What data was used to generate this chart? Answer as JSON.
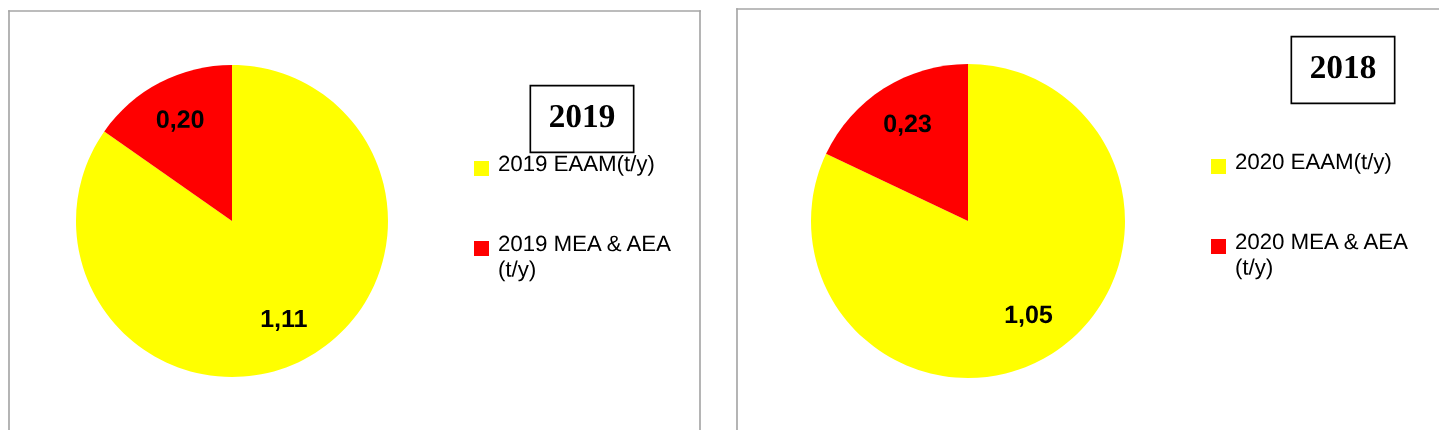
{
  "chart_data": [
    {
      "type": "pie",
      "title": "2019",
      "categories": [
        "2019 EAAM(t/y)",
        "2019 MEA & AEA (t/y)"
      ],
      "values": [
        1.11,
        0.2
      ],
      "colors": [
        "#ffff00",
        "#ff0000"
      ],
      "value_labels": [
        "1,11",
        "0,20"
      ],
      "legend": "right"
    },
    {
      "type": "pie",
      "title": "2018",
      "categories": [
        "2020 EAAM(t/y)",
        "2020 MEA & AEA (t/y)"
      ],
      "values": [
        1.05,
        0.23
      ],
      "colors": [
        "#ffff00",
        "#ff0000"
      ],
      "value_labels": [
        "1,05",
        "0,23"
      ],
      "legend": "right"
    }
  ]
}
